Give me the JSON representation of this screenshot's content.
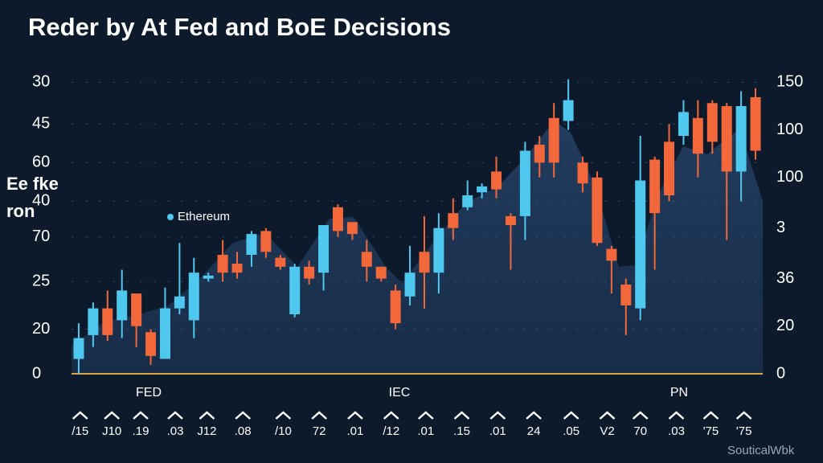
{
  "chart_data": {
    "type": "candlestick",
    "title": "Reder by At Fed and BoE Decisions",
    "y_label": "Ee fke ron",
    "watermark": "SouticalWbk",
    "annotations": [
      "FED",
      "IEC",
      "PN"
    ],
    "up_color": "#4fc8f0",
    "down_color": "#f2683a",
    "grid": true,
    "xlim": [
      -0.5,
      47.5
    ],
    "xticks": [
      {
        "value": 0.1,
        "label": "/15"
      },
      {
        "value": 2.3,
        "label": "J10"
      },
      {
        "value": 4.3,
        "label": ".19"
      },
      {
        "value": 6.7,
        "label": ".03"
      },
      {
        "value": 8.9,
        "label": "J12"
      },
      {
        "value": 11.4,
        "label": ".08"
      },
      {
        "value": 14.2,
        "label": "/10"
      },
      {
        "value": 16.7,
        "label": "72"
      },
      {
        "value": 19.2,
        "label": ".01"
      },
      {
        "value": 21.7,
        "label": "/12"
      },
      {
        "value": 24.1,
        "label": ".01"
      },
      {
        "value": 26.6,
        "label": ".15"
      },
      {
        "value": 29.1,
        "label": ".01"
      },
      {
        "value": 31.6,
        "label": "24"
      },
      {
        "value": 34.2,
        "label": ".05"
      },
      {
        "value": 36.7,
        "label": "V2"
      },
      {
        "value": 39.0,
        "label": "70"
      },
      {
        "value": 41.5,
        "label": ".03"
      },
      {
        "value": 43.9,
        "label": "'75"
      },
      {
        "value": 46.2,
        "label": "'75"
      }
    ],
    "ylim": [
      0,
      100
    ],
    "yticks": [
      {
        "value": 98,
        "label": "30"
      },
      {
        "value": 84,
        "label": "45"
      },
      {
        "value": 71,
        "label": "60"
      },
      {
        "value": 58,
        "label": "40"
      },
      {
        "value": 46,
        "label": "70"
      },
      {
        "value": 31,
        "label": "25"
      },
      {
        "value": 15,
        "label": "20"
      },
      0
    ],
    "y2lim": [
      0,
      100
    ],
    "y2ticks": [
      {
        "value": 98,
        "label": "150"
      },
      {
        "value": 82,
        "label": "100"
      },
      {
        "value": 66,
        "label": "100"
      },
      {
        "value": 49,
        "label": "3"
      },
      {
        "value": 32,
        "label": "36"
      },
      {
        "value": 16,
        "label": "20"
      },
      0
    ],
    "series": [
      {
        "name": "Ethereum",
        "color": "#4fc8f0",
        "open": [
          5,
          13,
          22,
          18,
          27,
          14,
          5,
          22,
          18,
          32,
          40,
          37,
          40,
          48,
          39,
          20,
          36,
          34,
          56,
          51,
          41,
          36,
          28,
          26,
          41,
          34,
          54,
          56,
          61,
          68,
          53,
          53,
          77,
          86,
          85,
          71,
          66,
          42,
          30,
          22,
          72,
          78,
          80,
          86,
          91,
          90,
          68,
          93
        ],
        "high": [
          17,
          24,
          28,
          35,
          27,
          15,
          29,
          44,
          39,
          34,
          45,
          41,
          48,
          49,
          40,
          37,
          38,
          50,
          57,
          51,
          45,
          36,
          30,
          43,
          53,
          54,
          59,
          65,
          64,
          73,
          54,
          78,
          80,
          91,
          99,
          73,
          68,
          43,
          32,
          80,
          73,
          84,
          92,
          92,
          92,
          91,
          95,
          96
        ],
        "low": [
          0,
          9,
          11,
          12,
          9,
          3,
          5,
          20,
          12,
          31,
          31,
          32,
          36,
          39,
          35,
          19,
          30,
          28,
          46,
          45,
          31,
          31,
          15,
          23,
          22,
          27,
          45,
          55,
          59,
          59,
          35,
          45,
          66,
          66,
          82,
          61,
          43,
          27,
          13,
          18,
          35,
          58,
          77,
          66,
          74,
          45,
          58,
          72
        ],
        "close": [
          12,
          22,
          13,
          28,
          16,
          6,
          22,
          26,
          34,
          33,
          34,
          34,
          47,
          41,
          36,
          36,
          32,
          50,
          48,
          47,
          36,
          32,
          17,
          34,
          34,
          49,
          49,
          60,
          63,
          62,
          50,
          75,
          71,
          71,
          92,
          64,
          44,
          38,
          23,
          65,
          54,
          60,
          88,
          74,
          78,
          68,
          90,
          75
        ]
      }
    ]
  }
}
